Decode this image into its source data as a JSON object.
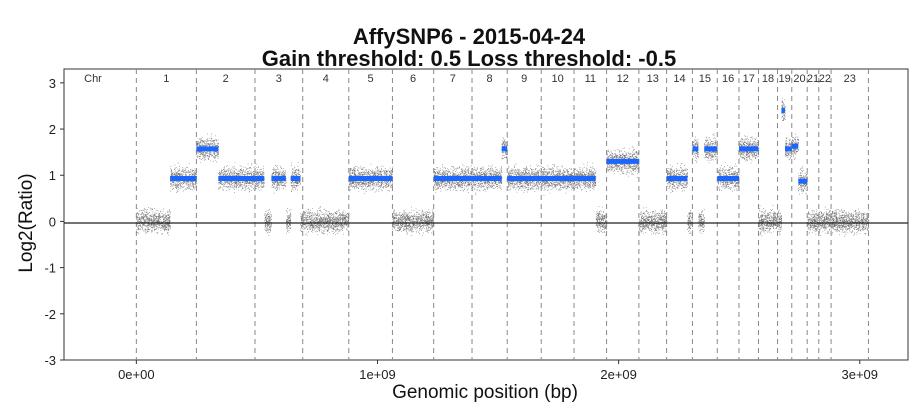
{
  "chart_data": {
    "type": "scatter",
    "title": "AffySNP6 - 2015-04-24",
    "subtitle": "Gain threshold:  0.5  Loss threshold: -0.5",
    "xlabel": "Genomic position (bp)",
    "ylabel": "Log2(Ratio)",
    "xlim": [
      -300000000,
      3200000000
    ],
    "ylim": [
      -3,
      3.3
    ],
    "x_ticks": [
      {
        "value": 0,
        "label": "0e+00"
      },
      {
        "value": 1000000000,
        "label": "1e+09"
      },
      {
        "value": 2000000000,
        "label": "2e+09"
      },
      {
        "value": 3000000000,
        "label": "3e+09"
      }
    ],
    "y_ticks": [
      {
        "value": 3,
        "label": "3"
      },
      {
        "value": 2,
        "label": "2"
      },
      {
        "value": 1,
        "label": "1"
      },
      {
        "value": 0,
        "label": "0"
      },
      {
        "value": -1,
        "label": "-1"
      },
      {
        "value": -2,
        "label": "-2"
      },
      {
        "value": -3,
        "label": "-3"
      }
    ],
    "baseline": 0,
    "chr_header_label": "Chr",
    "chromosomes": [
      {
        "label": "1",
        "start": 0,
        "end": 249000000
      },
      {
        "label": "2",
        "start": 249000000,
        "end": 492000000
      },
      {
        "label": "3",
        "start": 492000000,
        "end": 690000000
      },
      {
        "label": "4",
        "start": 690000000,
        "end": 881000000
      },
      {
        "label": "5",
        "start": 881000000,
        "end": 1062000000
      },
      {
        "label": "6",
        "start": 1062000000,
        "end": 1233000000
      },
      {
        "label": "7",
        "start": 1233000000,
        "end": 1392000000
      },
      {
        "label": "8",
        "start": 1392000000,
        "end": 1538000000
      },
      {
        "label": "9",
        "start": 1538000000,
        "end": 1679000000
      },
      {
        "label": "10",
        "start": 1679000000,
        "end": 1815000000
      },
      {
        "label": "11",
        "start": 1815000000,
        "end": 1950000000
      },
      {
        "label": "12",
        "start": 1950000000,
        "end": 2084000000
      },
      {
        "label": "13",
        "start": 2084000000,
        "end": 2199000000
      },
      {
        "label": "14",
        "start": 2199000000,
        "end": 2306000000
      },
      {
        "label": "15",
        "start": 2306000000,
        "end": 2409000000
      },
      {
        "label": "16",
        "start": 2409000000,
        "end": 2499000000
      },
      {
        "label": "17",
        "start": 2499000000,
        "end": 2580000000
      },
      {
        "label": "18",
        "start": 2580000000,
        "end": 2659000000
      },
      {
        "label": "19",
        "start": 2659000000,
        "end": 2718000000
      },
      {
        "label": "20",
        "start": 2718000000,
        "end": 2782000000
      },
      {
        "label": "21",
        "start": 2782000000,
        "end": 2830000000
      },
      {
        "label": "22",
        "start": 2830000000,
        "end": 2881000000
      },
      {
        "label": "23",
        "start": 2881000000,
        "end": 3036000000
      }
    ],
    "segments": [
      {
        "start": 0,
        "end": 140000000,
        "value": 0,
        "color": "#555555"
      },
      {
        "start": 140000000,
        "end": 249000000,
        "value": 0.93,
        "color": "#1a66ff"
      },
      {
        "start": 249000000,
        "end": 340000000,
        "value": 1.57,
        "color": "#1a66ff"
      },
      {
        "start": 340000000,
        "end": 530000000,
        "value": 0.93,
        "color": "#1a66ff"
      },
      {
        "start": 530000000,
        "end": 560000000,
        "value": 0,
        "color": "#555555"
      },
      {
        "start": 560000000,
        "end": 620000000,
        "value": 0.93,
        "color": "#1a66ff"
      },
      {
        "start": 620000000,
        "end": 640000000,
        "value": 0,
        "color": "#555555"
      },
      {
        "start": 640000000,
        "end": 680000000,
        "value": 0.93,
        "color": "#1a66ff"
      },
      {
        "start": 680000000,
        "end": 881000000,
        "value": 0,
        "color": "#555555"
      },
      {
        "start": 881000000,
        "end": 1062000000,
        "value": 0.93,
        "color": "#1a66ff"
      },
      {
        "start": 1062000000,
        "end": 1233000000,
        "value": 0,
        "color": "#555555"
      },
      {
        "start": 1233000000,
        "end": 1515000000,
        "value": 0.93,
        "color": "#1a66ff"
      },
      {
        "start": 1515000000,
        "end": 1538000000,
        "value": 1.57,
        "color": "#1a66ff"
      },
      {
        "start": 1538000000,
        "end": 1905000000,
        "value": 0.93,
        "color": "#1a66ff"
      },
      {
        "start": 1905000000,
        "end": 1950000000,
        "value": 0,
        "color": "#555555"
      },
      {
        "start": 1950000000,
        "end": 2084000000,
        "value": 1.3,
        "color": "#1a66ff"
      },
      {
        "start": 2084000000,
        "end": 2199000000,
        "value": 0,
        "color": "#555555"
      },
      {
        "start": 2199000000,
        "end": 2285000000,
        "value": 0.93,
        "color": "#1a66ff"
      },
      {
        "start": 2285000000,
        "end": 2306000000,
        "value": 0,
        "color": "#555555"
      },
      {
        "start": 2306000000,
        "end": 2330000000,
        "value": 1.57,
        "color": "#1a66ff"
      },
      {
        "start": 2330000000,
        "end": 2355000000,
        "value": 0,
        "color": "#555555"
      },
      {
        "start": 2355000000,
        "end": 2409000000,
        "value": 1.57,
        "color": "#1a66ff"
      },
      {
        "start": 2409000000,
        "end": 2499000000,
        "value": 0.93,
        "color": "#1a66ff"
      },
      {
        "start": 2499000000,
        "end": 2580000000,
        "value": 1.57,
        "color": "#1a66ff"
      },
      {
        "start": 2580000000,
        "end": 2659000000,
        "value": 0,
        "color": "#555555"
      },
      {
        "start": 2659000000,
        "end": 2675000000,
        "value": 0,
        "color": "#555555"
      },
      {
        "start": 2675000000,
        "end": 2690000000,
        "value": 2.4,
        "color": "#1a66ff"
      },
      {
        "start": 2690000000,
        "end": 2718000000,
        "value": 1.57,
        "color": "#1a66ff"
      },
      {
        "start": 2718000000,
        "end": 2745000000,
        "value": 1.63,
        "color": "#1a66ff"
      },
      {
        "start": 2745000000,
        "end": 2782000000,
        "value": 0.87,
        "color": "#1a66ff"
      },
      {
        "start": 2782000000,
        "end": 2830000000,
        "value": 0,
        "color": "#555555"
      },
      {
        "start": 2830000000,
        "end": 2881000000,
        "value": 0,
        "color": "#555555"
      },
      {
        "start": 2881000000,
        "end": 3036000000,
        "value": 0,
        "color": "#555555"
      }
    ],
    "grid": false,
    "legend": "none",
    "colors": {
      "segment": "#1a66ff",
      "points": "#555555",
      "divider": "#888888",
      "axis": "#333333"
    }
  }
}
